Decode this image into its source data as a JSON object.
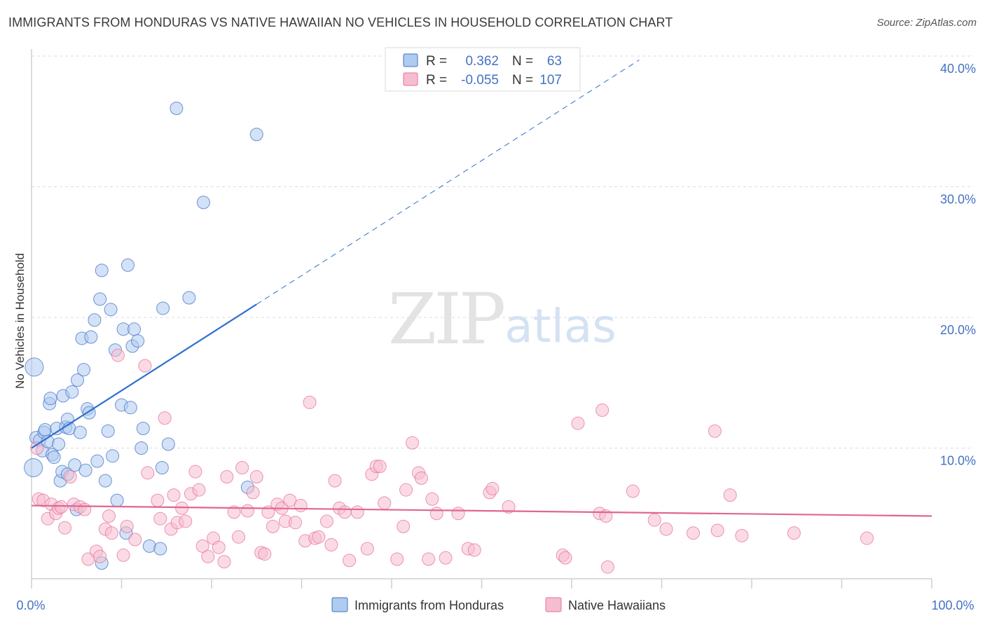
{
  "title": "IMMIGRANTS FROM HONDURAS VS NATIVE HAWAIIAN NO VEHICLES IN HOUSEHOLD CORRELATION CHART",
  "source": "Source: ZipAtlas.com",
  "watermark": {
    "zip": "ZIP",
    "atlas": "atlas"
  },
  "colors": {
    "blue": "#4472c4",
    "blue_fill": "#aecbf0",
    "blue_line": "#2e6fce",
    "pink": "#e8729a",
    "pink_fill": "#f6bdd0",
    "pink_line": "#e06692",
    "grid": "#dddddd"
  },
  "legend": {
    "rows": [
      {
        "r_label": "R =",
        "r_value": "0.362",
        "n_label": "N =",
        "n_value": "63"
      },
      {
        "r_label": "R =",
        "r_value": "-0.055",
        "n_label": "N =",
        "n_value": "107"
      }
    ]
  },
  "chart_data": {
    "type": "scatter",
    "title": "IMMIGRANTS FROM HONDURAS VS NATIVE HAWAIIAN NO VEHICLES IN HOUSEHOLD CORRELATION CHART",
    "xlabel": "",
    "ylabel": "No Vehicles in Household",
    "xlim": [
      0,
      100
    ],
    "ylim": [
      0,
      40
    ],
    "x_tick_labels": [
      "0.0%",
      "100.0%"
    ],
    "y_ticks": [
      10,
      20,
      30,
      40
    ],
    "y_tick_labels": [
      "10.0%",
      "20.0%",
      "30.0%",
      "40.0%"
    ],
    "grid": true,
    "legend_position": "top-center",
    "series": [
      {
        "name": "Immigrants from Honduras",
        "r": 0.362,
        "n": 63,
        "trend": {
          "x0": 0,
          "y0": 10.0,
          "x1": 25,
          "y1": 21.0,
          "extend_to_x": 67.5
        },
        "points": [
          [
            0.3,
            16.2
          ],
          [
            0.2,
            8.5
          ],
          [
            0.5,
            10.8
          ],
          [
            0.9,
            10.6
          ],
          [
            1.2,
            9.8
          ],
          [
            1.4,
            11.2
          ],
          [
            1.5,
            11.4
          ],
          [
            1.8,
            10.5
          ],
          [
            2.0,
            13.4
          ],
          [
            2.1,
            13.8
          ],
          [
            2.3,
            9.5
          ],
          [
            2.5,
            9.3
          ],
          [
            2.8,
            11.5
          ],
          [
            3.0,
            10.3
          ],
          [
            3.2,
            7.5
          ],
          [
            3.4,
            8.2
          ],
          [
            3.5,
            14.0
          ],
          [
            3.8,
            11.6
          ],
          [
            4.0,
            8.0
          ],
          [
            4.0,
            12.2
          ],
          [
            4.2,
            11.5
          ],
          [
            4.5,
            14.3
          ],
          [
            4.8,
            8.7
          ],
          [
            5.0,
            5.3
          ],
          [
            5.1,
            15.2
          ],
          [
            5.4,
            11.2
          ],
          [
            5.6,
            18.4
          ],
          [
            5.8,
            16.0
          ],
          [
            6.0,
            8.3
          ],
          [
            6.2,
            13.0
          ],
          [
            6.4,
            12.7
          ],
          [
            6.6,
            18.5
          ],
          [
            7.0,
            19.8
          ],
          [
            7.3,
            9.0
          ],
          [
            7.6,
            21.4
          ],
          [
            7.8,
            23.6
          ],
          [
            8.2,
            7.5
          ],
          [
            8.5,
            11.3
          ],
          [
            8.8,
            20.6
          ],
          [
            9.0,
            9.4
          ],
          [
            9.3,
            17.5
          ],
          [
            9.5,
            6.0
          ],
          [
            10.0,
            13.3
          ],
          [
            10.2,
            19.1
          ],
          [
            10.5,
            3.5
          ],
          [
            10.7,
            24.0
          ],
          [
            11.0,
            13.1
          ],
          [
            11.2,
            17.8
          ],
          [
            11.4,
            19.1
          ],
          [
            11.8,
            18.2
          ],
          [
            12.2,
            10.0
          ],
          [
            12.4,
            11.5
          ],
          [
            13.1,
            2.5
          ],
          [
            14.3,
            2.3
          ],
          [
            14.5,
            8.5
          ],
          [
            14.6,
            20.7
          ],
          [
            15.2,
            10.3
          ],
          [
            16.1,
            36.0
          ],
          [
            17.5,
            21.5
          ],
          [
            19.1,
            28.8
          ],
          [
            24.0,
            7.0
          ],
          [
            25.0,
            34.0
          ],
          [
            7.8,
            1.2
          ]
        ]
      },
      {
        "name": "Native Hawaiians",
        "r": -0.055,
        "n": 107,
        "trend": {
          "x0": 0,
          "y0": 5.6,
          "x1": 100,
          "y1": 4.8
        },
        "points": [
          [
            0.6,
            10.0
          ],
          [
            0.8,
            6.1
          ],
          [
            1.3,
            6.0
          ],
          [
            1.8,
            4.6
          ],
          [
            2.2,
            5.7
          ],
          [
            2.7,
            5.0
          ],
          [
            3.0,
            5.4
          ],
          [
            3.3,
            5.5
          ],
          [
            3.7,
            3.9
          ],
          [
            4.3,
            7.8
          ],
          [
            4.7,
            5.7
          ],
          [
            5.4,
            5.5
          ],
          [
            5.9,
            5.3
          ],
          [
            6.3,
            1.5
          ],
          [
            7.2,
            2.1
          ],
          [
            7.6,
            1.7
          ],
          [
            8.2,
            3.8
          ],
          [
            8.6,
            4.8
          ],
          [
            8.9,
            3.5
          ],
          [
            9.6,
            17.1
          ],
          [
            10.2,
            1.8
          ],
          [
            10.6,
            4.0
          ],
          [
            11.5,
            3.0
          ],
          [
            12.6,
            16.3
          ],
          [
            12.9,
            8.1
          ],
          [
            14.0,
            6.0
          ],
          [
            14.3,
            4.6
          ],
          [
            14.8,
            12.3
          ],
          [
            15.5,
            3.8
          ],
          [
            15.8,
            6.4
          ],
          [
            16.2,
            4.3
          ],
          [
            16.7,
            5.4
          ],
          [
            17.1,
            4.4
          ],
          [
            17.7,
            6.5
          ],
          [
            18.2,
            8.2
          ],
          [
            18.6,
            6.8
          ],
          [
            19.0,
            2.5
          ],
          [
            19.6,
            1.7
          ],
          [
            20.2,
            3.1
          ],
          [
            20.8,
            2.4
          ],
          [
            21.4,
            1.3
          ],
          [
            21.7,
            7.8
          ],
          [
            22.5,
            5.1
          ],
          [
            23.0,
            3.2
          ],
          [
            23.4,
            8.5
          ],
          [
            24.0,
            5.2
          ],
          [
            24.6,
            6.6
          ],
          [
            25.0,
            7.8
          ],
          [
            25.5,
            2.0
          ],
          [
            25.9,
            1.9
          ],
          [
            26.3,
            5.1
          ],
          [
            26.8,
            4.0
          ],
          [
            27.3,
            5.7
          ],
          [
            27.8,
            5.4
          ],
          [
            28.2,
            4.4
          ],
          [
            28.7,
            6.0
          ],
          [
            29.3,
            4.3
          ],
          [
            29.9,
            5.6
          ],
          [
            30.4,
            2.9
          ],
          [
            30.9,
            13.5
          ],
          [
            31.5,
            3.1
          ],
          [
            31.9,
            3.2
          ],
          [
            32.8,
            4.4
          ],
          [
            33.3,
            2.6
          ],
          [
            33.7,
            7.5
          ],
          [
            34.2,
            5.4
          ],
          [
            34.8,
            5.1
          ],
          [
            35.3,
            1.4
          ],
          [
            36.2,
            5.1
          ],
          [
            37.3,
            2.3
          ],
          [
            37.8,
            8.0
          ],
          [
            38.3,
            8.6
          ],
          [
            38.7,
            8.6
          ],
          [
            39.2,
            5.8
          ],
          [
            40.6,
            1.5
          ],
          [
            41.3,
            4.0
          ],
          [
            41.6,
            6.8
          ],
          [
            42.3,
            10.4
          ],
          [
            43.0,
            8.1
          ],
          [
            43.3,
            7.7
          ],
          [
            44.1,
            1.5
          ],
          [
            44.5,
            6.1
          ],
          [
            45.0,
            5.0
          ],
          [
            46.0,
            1.6
          ],
          [
            47.4,
            5.0
          ],
          [
            48.5,
            2.3
          ],
          [
            49.2,
            2.2
          ],
          [
            50.9,
            6.6
          ],
          [
            51.2,
            6.9
          ],
          [
            53.0,
            5.5
          ],
          [
            59.0,
            1.8
          ],
          [
            59.3,
            1.6
          ],
          [
            60.7,
            11.9
          ],
          [
            63.1,
            5.0
          ],
          [
            63.8,
            4.8
          ],
          [
            63.4,
            12.9
          ],
          [
            64.0,
            0.9
          ],
          [
            66.8,
            6.7
          ],
          [
            69.2,
            4.5
          ],
          [
            70.5,
            3.8
          ],
          [
            73.5,
            3.5
          ],
          [
            75.9,
            11.3
          ],
          [
            76.2,
            3.7
          ],
          [
            77.6,
            6.4
          ],
          [
            78.9,
            3.3
          ],
          [
            84.7,
            3.5
          ],
          [
            92.8,
            3.1
          ]
        ]
      }
    ]
  },
  "bottom_legend": [
    {
      "label": "Immigrants from Honduras"
    },
    {
      "label": "Native Hawaiians"
    }
  ]
}
